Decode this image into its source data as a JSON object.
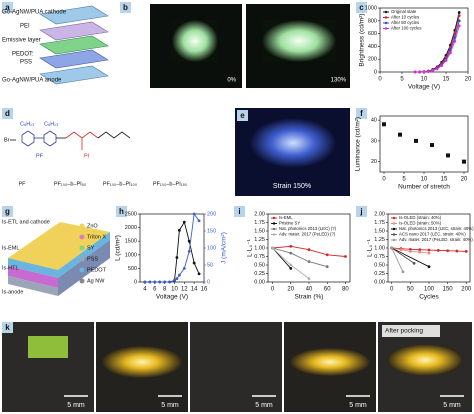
{
  "panels": [
    "a",
    "b",
    "c",
    "d",
    "e",
    "f",
    "g",
    "h",
    "i",
    "j",
    "k"
  ],
  "panel_a": {
    "labels": [
      "Go-AgNW/PUA cathode",
      "PEI",
      "Emissive layer",
      "PEDOT:",
      "PSS",
      "Go-AgNW/PUA anode"
    ]
  },
  "panel_b": {
    "labels": [
      "0%",
      "130%"
    ]
  },
  "panel_d": {
    "structure": [
      "Br",
      "C₆H₁₃",
      "C₆H₁₃",
      "PF",
      "PI"
    ],
    "polymers": [
      "PF",
      "PF₁₀₀–b–PI₅₀",
      "PF₁₀₀–b–PI₁₀₀",
      "PF₁₀₀–b–PI₁₅₀"
    ]
  },
  "panel_e": {
    "label": "Strain 150%"
  },
  "panel_g": {
    "layers": [
      "Is-ETL and cathode",
      "Is-EML",
      "Is-HTL",
      "Is-anode"
    ],
    "legend": [
      "ZnO",
      "Triton X",
      "SY",
      "PSS",
      "PEDOT",
      "Ag NW"
    ]
  },
  "panel_k": {
    "scale": [
      "5 mm",
      "5 mm",
      "5 mm",
      "5 mm",
      "5 mm"
    ],
    "note": "After pocking"
  },
  "chart_data": [
    {
      "type": "line",
      "xlabel": "Voltage (V)",
      "ylabel": "Brightness (cd/m²)",
      "x": [
        8,
        9,
        10,
        11,
        12,
        13,
        14,
        15,
        16,
        17,
        18
      ],
      "xlim": [
        0,
        20
      ],
      "xticks": [
        0,
        5,
        10,
        15,
        20
      ],
      "ylim": [
        0,
        1000
      ],
      "yticks": [
        0,
        200,
        400,
        600,
        800,
        1000
      ],
      "legend": "upper left",
      "series": [
        {
          "name": "Original state",
          "color": "#111111",
          "values": [
            0,
            0,
            5,
            15,
            40,
            80,
            150,
            260,
            420,
            650,
            930
          ]
        },
        {
          "name": "After 10 cycles",
          "color": "#d62728",
          "values": [
            0,
            0,
            4,
            12,
            35,
            70,
            130,
            230,
            380,
            600,
            880
          ]
        },
        {
          "name": "After 50 cycles",
          "color": "#1f4fd6",
          "values": [
            0,
            0,
            3,
            10,
            30,
            60,
            115,
            200,
            340,
            540,
            800
          ]
        },
        {
          "name": "After 100 cycles",
          "color": "#d62fd6",
          "values": [
            0,
            0,
            2,
            8,
            25,
            50,
            100,
            180,
            300,
            480,
            720
          ]
        }
      ]
    },
    {
      "type": "scatter",
      "xlabel": "Number of stretch",
      "ylabel": "Luminance (cd/m²)",
      "x": [
        0,
        4,
        8,
        12,
        16,
        20
      ],
      "xlim": [
        -1,
        21
      ],
      "xticks": [
        0,
        5,
        10,
        15,
        20
      ],
      "ylim": [
        15,
        42
      ],
      "yticks": [
        20,
        30,
        40
      ],
      "series": [
        {
          "color": "#111111",
          "values": [
            38,
            33,
            30,
            28,
            23,
            20
          ]
        }
      ]
    },
    {
      "type": "line",
      "xlabel": "Voltage (V)",
      "ylabel": "L (cd/m²)",
      "y2label": "J (mA/cm²)",
      "x": [
        4,
        5,
        6,
        7,
        8,
        9,
        10,
        10.5,
        11,
        12,
        13,
        14,
        15
      ],
      "xlim": [
        3,
        16
      ],
      "xticks": [
        4,
        6,
        8,
        10,
        12,
        14,
        16
      ],
      "ylim": [
        0,
        2500
      ],
      "yticks": [
        0,
        500,
        1000,
        1500,
        2000,
        2500
      ],
      "y2lim": [
        0,
        200
      ],
      "y2ticks": [
        0,
        50,
        100,
        150,
        200
      ],
      "series": [
        {
          "color": "#111111",
          "values": [
            0,
            0,
            0,
            0,
            0,
            0,
            50,
            900,
            1900,
            2200,
            1500,
            700,
            300
          ]
        },
        {
          "color": "#3a5fcd",
          "axis": "y2",
          "values": [
            0,
            0,
            0,
            0,
            0,
            0,
            5,
            10,
            20,
            40,
            90,
            200,
            180
          ]
        }
      ]
    },
    {
      "type": "line",
      "xlabel": "Strain (%)",
      "ylabel": "L·L₀⁻¹",
      "xlim": [
        -5,
        85
      ],
      "xticks": [
        0,
        20,
        40,
        60,
        80
      ],
      "ylim": [
        0,
        2
      ],
      "yticks": [
        {
          "value": 0,
          "label": "0.00"
        },
        {
          "value": 0.25,
          "label": "0.25"
        },
        {
          "value": 0.5,
          "label": "0.50"
        },
        {
          "value": 0.75,
          "label": "0.75"
        },
        {
          "value": 1,
          "label": "1.00"
        },
        {
          "value": 1.25,
          "label": "1.25"
        },
        {
          "value": 1.5,
          "label": "1.50"
        },
        {
          "value": 1.75,
          "label": "1.75"
        },
        {
          "value": 2,
          "label": "2.00"
        }
      ],
      "legend": "upper left",
      "series": [
        {
          "name": "Is-EML",
          "color": "#d62728",
          "x": [
            0,
            20,
            40,
            60,
            80
          ],
          "values": [
            1.0,
            1.05,
            0.95,
            0.8,
            0.75
          ]
        },
        {
          "name": "Pristine SY",
          "color": "#111111",
          "x": [
            0,
            20
          ],
          "values": [
            1.0,
            0.4
          ]
        },
        {
          "name": "Nat. photonics 2013 (LEC) (?)",
          "color": "#777777",
          "x": [
            0,
            20,
            40,
            60
          ],
          "values": [
            1.0,
            0.85,
            0.6,
            0.45
          ]
        },
        {
          "name": "Adv. mater. 2017 (PeLED) (?)",
          "color": "#b0b0b0",
          "x": [
            0,
            20,
            40
          ],
          "values": [
            1.0,
            0.5,
            0.1
          ]
        }
      ]
    },
    {
      "type": "line",
      "xlabel": "Cycles",
      "ylabel": "L·L₀⁻¹",
      "xlim": [
        -10,
        210
      ],
      "xticks": [
        0,
        50,
        100,
        150,
        200
      ],
      "ylim": [
        0,
        2
      ],
      "yticks": [
        {
          "value": 0,
          "label": "0.00"
        },
        {
          "value": 0.25,
          "label": "0.25"
        },
        {
          "value": 0.5,
          "label": "0.50"
        },
        {
          "value": 0.75,
          "label": "0.75"
        },
        {
          "value": 1,
          "label": "1.00"
        },
        {
          "value": 1.25,
          "label": "1.25"
        },
        {
          "value": 1.5,
          "label": "1.50"
        },
        {
          "value": 1.75,
          "label": "1.75"
        },
        {
          "value": 2,
          "label": "2.00"
        }
      ],
      "legend": "upper left",
      "series": [
        {
          "name": "Is-OLED (strain: 40%)",
          "color": "#d62728",
          "x": [
            0,
            25,
            50,
            75,
            100,
            125,
            150,
            175,
            200
          ],
          "values": [
            1.0,
            0.98,
            0.96,
            0.95,
            0.94,
            0.93,
            0.92,
            0.91,
            0.9
          ]
        },
        {
          "name": "Is-OLED (strain: 50%)",
          "color": "#e88a8a",
          "x": [
            0,
            25,
            50,
            75,
            100
          ],
          "values": [
            1.0,
            0.95,
            0.9,
            0.88,
            0.85
          ]
        },
        {
          "name": "Nat. photonics 2013 (LEC, strain: 40%)",
          "color": "#111111",
          "x": [
            0,
            100
          ],
          "values": [
            1.0,
            0.45
          ]
        },
        {
          "name": "ACS nano 2017 (LEC, strain: 40%)",
          "color": "#555555",
          "x": [
            0,
            60
          ],
          "values": [
            1.0,
            0.55
          ]
        },
        {
          "name": "Adv. mater. 2017 (PeLED, strain: 40%)",
          "color": "#999999",
          "x": [
            0,
            30
          ],
          "values": [
            1.0,
            0.3
          ]
        }
      ]
    }
  ]
}
